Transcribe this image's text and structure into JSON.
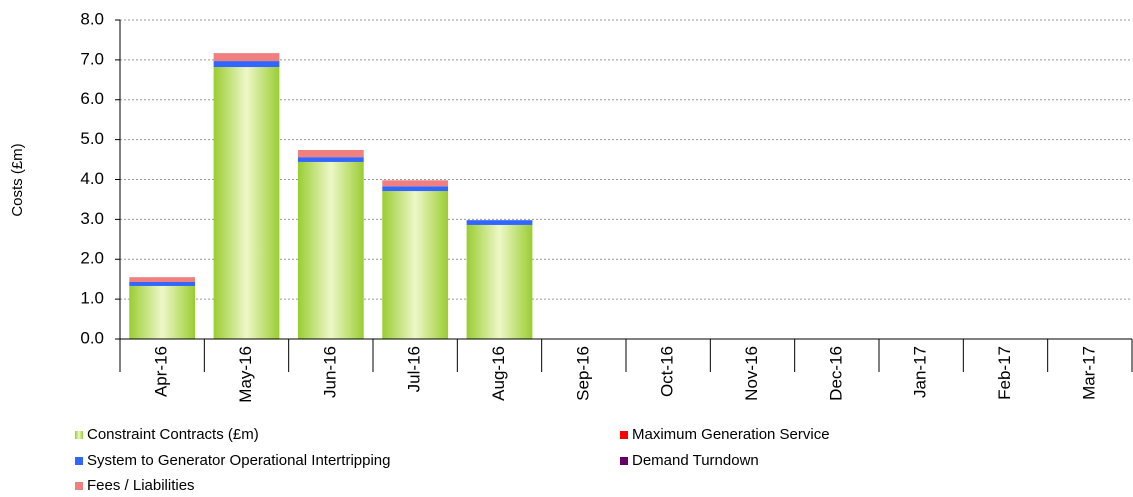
{
  "chart_data": {
    "type": "stacked_bar",
    "y_label": "Costs (£m)",
    "categories": [
      "Apr-16",
      "May-16",
      "Jun-16",
      "Jul-16",
      "Aug-16",
      "Sep-16",
      "Oct-16",
      "Nov-16",
      "Dec-16",
      "Jan-17",
      "Feb-17",
      "Mar-17"
    ],
    "series": [
      {
        "name": "Constraint Contracts (£m)",
        "color": "#9acd32",
        "values": [
          1.33,
          6.82,
          4.44,
          3.71,
          2.86,
          null,
          null,
          null,
          null,
          null,
          null,
          null
        ]
      },
      {
        "name": "System to Generator Operational Intertripping",
        "color": "#3366ff",
        "values": [
          0.1,
          0.15,
          0.12,
          0.12,
          0.12,
          null,
          null,
          null,
          null,
          null,
          null,
          null
        ]
      },
      {
        "name": "Fees / Liabilities",
        "color": "#f08080",
        "values": [
          0.12,
          0.2,
          0.18,
          0.15,
          0,
          null,
          null,
          null,
          null,
          null,
          null,
          null
        ]
      },
      {
        "name": "Maximum Generation Service",
        "color": "#ff0000",
        "values": [
          0,
          0,
          0,
          0,
          0,
          null,
          null,
          null,
          null,
          null,
          null,
          null
        ]
      },
      {
        "name": "Demand Turndown",
        "color": "#660066",
        "values": [
          0,
          0,
          0,
          0,
          0,
          null,
          null,
          null,
          null,
          null,
          null,
          null
        ]
      }
    ],
    "ylim": [
      0,
      8
    ],
    "yticks": [
      {
        "value": 0,
        "label": "0.0"
      },
      {
        "value": 1,
        "label": "1.0"
      },
      {
        "value": 2,
        "label": "2.0"
      },
      {
        "value": 3,
        "label": "3.0"
      },
      {
        "value": 4,
        "label": "4.0"
      },
      {
        "value": 5,
        "label": "5.0"
      },
      {
        "value": 6,
        "label": "6.0"
      },
      {
        "value": 7,
        "label": "7.0"
      },
      {
        "value": 8,
        "label": "8.0"
      }
    ],
    "grid": true
  }
}
